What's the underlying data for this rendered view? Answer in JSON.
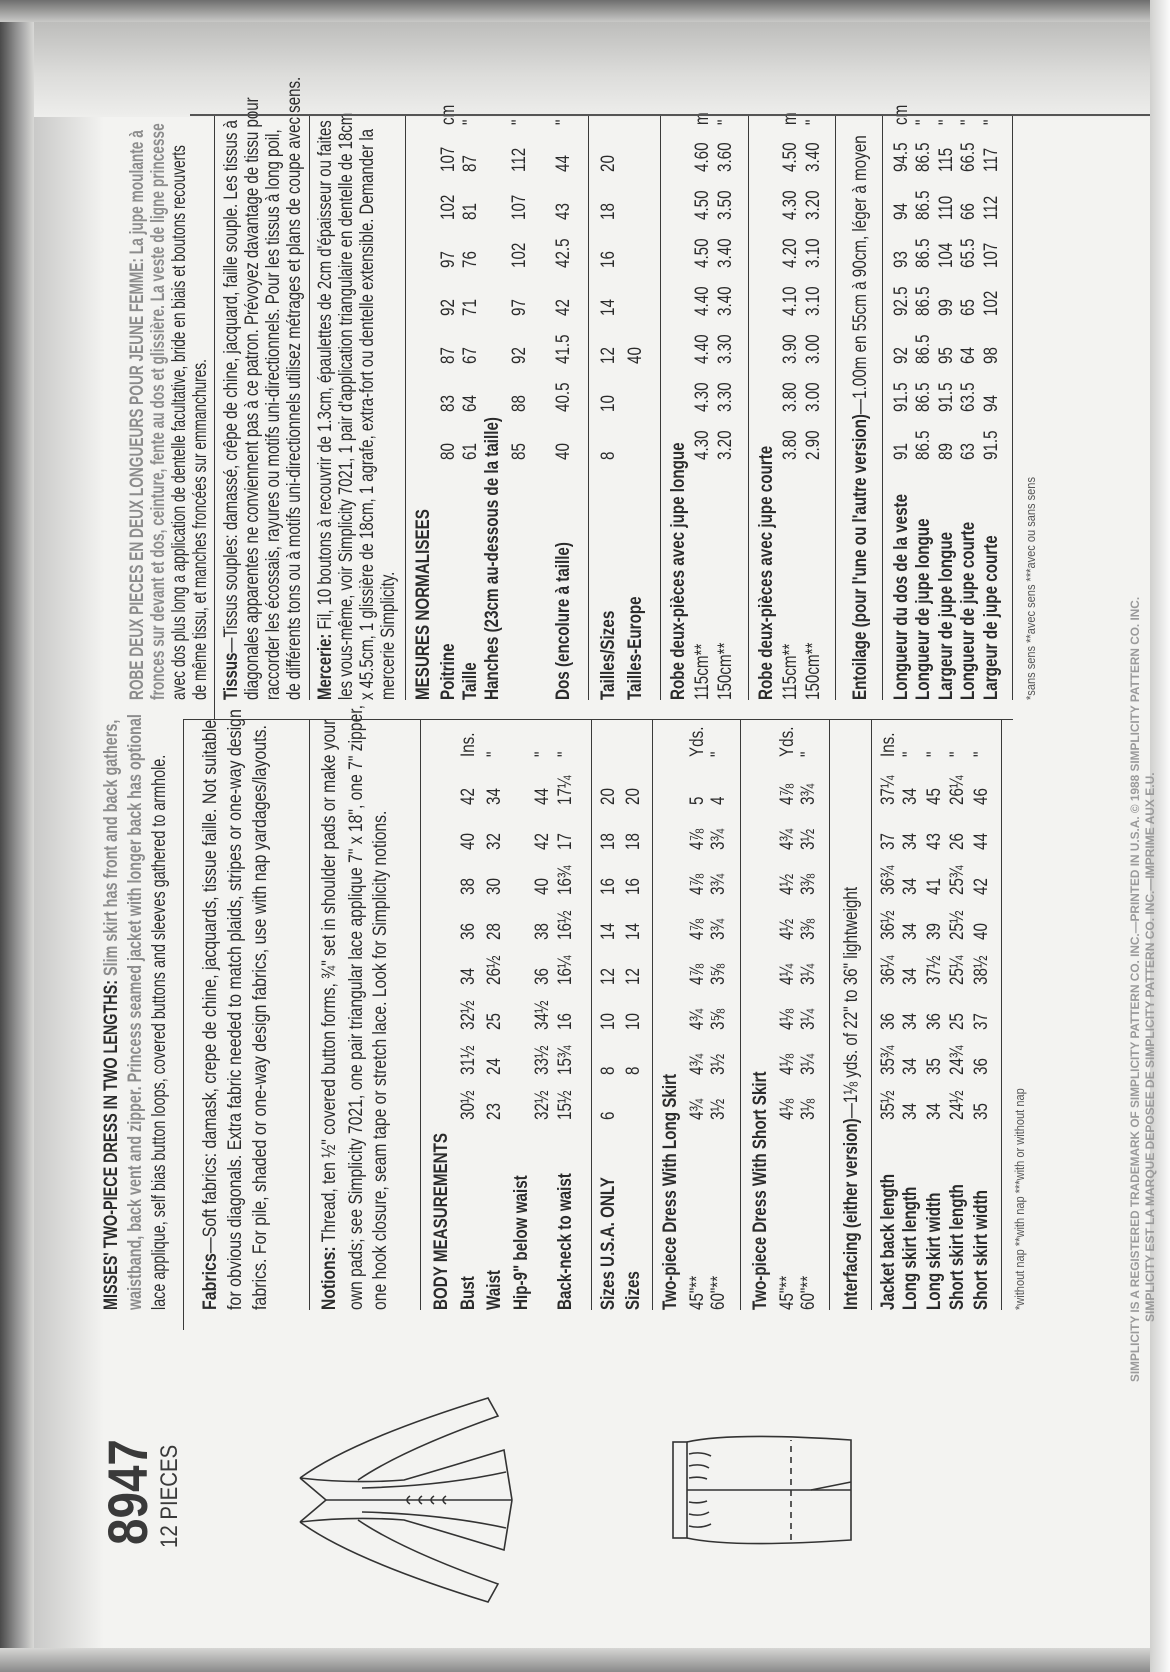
{
  "pattern": {
    "number": "8947",
    "pieces": "12 PIECES"
  },
  "english": {
    "header": {
      "lead": "MISSES' TWO-PIECE DRESS IN TWO LENGTHS:",
      "line1_rest": " Slim skirt has front and back gathers,",
      "line2": "waistband, back vent and zipper. Princess seamed jacket with longer back has optional",
      "line3": "lace applique, self bias button loops, covered buttons and sleeves gathered to armhole."
    },
    "fabrics": {
      "label": "Fabrics",
      "line1": "—Soft fabrics: damask, crepe de chine, jacquards, tissue faille. Not suitable",
      "line2": "for obvious diagonals. Extra fabric needed to match plaids, stripes or one-way design",
      "line3": "fabrics. For pile, shaded or one-way design fabrics, use with nap yardages/layouts."
    },
    "notions": {
      "label": "Notions:",
      "line1": " Thread, ten ½\" covered button forms, ¾\" set in shoulder pads or make your",
      "line2": "own pads; see Simplicity 7021, one pair triangular lace applique 7\" x 18\", one 7\" zipper,",
      "line3": "one hook closure, seam tape or stretch lace. Look for Simplicity notions."
    },
    "body": {
      "heading": "BODY MEASUREMENTS",
      "rows": [
        {
          "label": "Bust",
          "values": [
            "30½",
            "31½",
            "32½",
            "34",
            "36",
            "38",
            "40",
            "42"
          ],
          "unit": "Ins."
        },
        {
          "label": "Waist",
          "values": [
            "23",
            "24",
            "25",
            "26½",
            "28",
            "30",
            "32",
            "34"
          ],
          "unit": "\""
        },
        {
          "label": "Hip-9\" below waist",
          "values": [
            "32½",
            "33½",
            "34½",
            "36",
            "38",
            "40",
            "42",
            "44"
          ],
          "unit": "\""
        },
        {
          "label": "Back-neck to waist",
          "values": [
            "15½",
            "15¾",
            "16",
            "16¼",
            "16½",
            "16¾",
            "17",
            "17¼"
          ],
          "unit": "\""
        }
      ]
    },
    "sizes": [
      {
        "label": "Sizes U.S.A. ONLY",
        "values": [
          "6",
          "8",
          "10",
          "12",
          "14",
          "16",
          "18",
          "20"
        ]
      },
      {
        "label": "Sizes",
        "values": [
          "",
          "8",
          "10",
          "12",
          "14",
          "16",
          "18",
          "20"
        ]
      }
    ],
    "long": {
      "title": "Two-piece Dress With Long Skirt",
      "rows": [
        {
          "label": "45\"**",
          "values": [
            "4¾",
            "4¾",
            "4¾",
            "4⅞",
            "4⅞",
            "4⅞",
            "4⅞",
            "5"
          ],
          "unit": "Yds."
        },
        {
          "label": "60\"**",
          "values": [
            "3½",
            "3½",
            "3⅝",
            "3⅝",
            "3¾",
            "3¾",
            "3¾",
            "4"
          ],
          "unit": "\""
        }
      ]
    },
    "short": {
      "title": "Two-piece Dress With Short Skirt",
      "rows": [
        {
          "label": "45\"**",
          "values": [
            "4⅛",
            "4⅛",
            "4⅛",
            "4¼",
            "4½",
            "4½",
            "4¾",
            "4⅞"
          ],
          "unit": "Yds."
        },
        {
          "label": "60\"**",
          "values": [
            "3⅛",
            "3¼",
            "3¼",
            "3¼",
            "3⅜",
            "3⅜",
            "3½",
            "3¾"
          ],
          "unit": "\""
        }
      ]
    },
    "interfacing": {
      "label": "Interfacing (either version)",
      "text": "—1⅛ yds. of 22\" to 36\" lightweight",
      "rows": [
        {
          "label": "Jacket back length",
          "values": [
            "35½",
            "35¾",
            "36",
            "36¼",
            "36½",
            "36¾",
            "37",
            "37¼"
          ],
          "unit": "Ins."
        },
        {
          "label": "Long skirt length",
          "values": [
            "34",
            "34",
            "34",
            "34",
            "34",
            "34",
            "34",
            "34"
          ],
          "unit": "\""
        },
        {
          "label": "Long skirt width",
          "values": [
            "34",
            "35",
            "36",
            "37½",
            "39",
            "41",
            "43",
            "45"
          ],
          "unit": "\""
        },
        {
          "label": "Short skirt length",
          "values": [
            "24½",
            "24¾",
            "25",
            "25¼",
            "25½",
            "25¾",
            "26",
            "26¼"
          ],
          "unit": "\""
        },
        {
          "label": "Short skirt width",
          "values": [
            "35",
            "36",
            "37",
            "38½",
            "40",
            "42",
            "44",
            "46"
          ],
          "unit": "\""
        }
      ]
    },
    "footnote": "*without nap  **with nap  ***with or without nap"
  },
  "french": {
    "header": {
      "lead": "ROBE DEUX PIECES EN DEUX LONGUEURS POUR JEUNE FEMME:",
      "line1_rest": " La jupe moulante à",
      "line2": "fronces sur devant et dos, ceinture, fente au dos et glissière. La veste de ligne princesse",
      "line3": "avec dos plus long a application de dentelle facultative, bride en biais et boutons recouverts",
      "line4": "de même tissu, et manches froncées sur emmanchures."
    },
    "tissus": {
      "label": "Tissus",
      "line1": "—Tissus souples: damassé, crêpe de chine, jacquard, faille souple. Les tissus à",
      "line2": "diagonales apparentes ne conviennent pas à ce patron. Prévoyez davantage de tissu pour",
      "line3": "raccorder les écossais, rayures ou motifs uni-directionnels. Pour les tissus à long poil,",
      "line4": "de différents tons ou à motifs uni-directionnels utilisez métrages et plans de coupe avec sens."
    },
    "mercerie": {
      "label": "Mercerie:",
      "line1": " Fil, 10 boutons à recouvrir de 1.3cm, épaulettes de 2cm d'épaisseur ou faites",
      "line2": "les vous-même, voir Simplicity 7021, 1 pair d'application triangulaire en dentelle de 18cm",
      "line3": "x 45.5cm, 1 glissière de 18cm, 1 agrafe, extra-fort ou dentelle extensible. Demander la",
      "line4": "mercerie Simplicity."
    },
    "body": {
      "heading": "MESURES NORMALISEES",
      "rows": [
        {
          "label": "Poitrine",
          "values": [
            "80",
            "83",
            "87",
            "92",
            "97",
            "102",
            "107"
          ],
          "unit": "cm"
        },
        {
          "label": "Taille",
          "values": [
            "61",
            "64",
            "67",
            "71",
            "76",
            "81",
            "87"
          ],
          "unit": "\""
        },
        {
          "label": "Hanches (23cm au-dessous de la taille)",
          "values": [
            "85",
            "88",
            "92",
            "97",
            "102",
            "107",
            "112"
          ],
          "unit": "\""
        },
        {
          "label": "Dos (encolure à taille)",
          "values": [
            "40",
            "40.5",
            "41.5",
            "42",
            "42.5",
            "43",
            "44"
          ],
          "unit": "\""
        }
      ]
    },
    "sizes": [
      {
        "label": "Tailles/Sizes",
        "values": [
          "8",
          "10",
          "12",
          "14",
          "16",
          "18",
          "20"
        ]
      },
      {
        "label": "Tailles-Europe",
        "values": [
          "",
          "",
          "40",
          "",
          "",
          "",
          ""
        ]
      }
    ],
    "long": {
      "title": "Robe deux-pièces avec jupe longue",
      "rows": [
        {
          "label": "115cm**",
          "values": [
            "4.30",
            "4.30",
            "4.40",
            "4.40",
            "4.50",
            "4.50",
            "4.60"
          ],
          "unit": "m"
        },
        {
          "label": "150cm**",
          "values": [
            "3.20",
            "3.30",
            "3.30",
            "3.40",
            "3.40",
            "3.50",
            "3.60"
          ],
          "unit": "\""
        }
      ]
    },
    "short": {
      "title": "Robe deux-pièces avec jupe courte",
      "rows": [
        {
          "label": "115cm**",
          "values": [
            "3.80",
            "3.80",
            "3.90",
            "4.10",
            "4.20",
            "4.30",
            "4.50"
          ],
          "unit": "m"
        },
        {
          "label": "150cm**",
          "values": [
            "2.90",
            "3.00",
            "3.00",
            "3.10",
            "3.10",
            "3.20",
            "3.40"
          ],
          "unit": "\""
        }
      ]
    },
    "interfacing": {
      "label": "Entoilage (pour l'une ou l'autre version)",
      "text": "—1.00m en 55cm à 90cm, léger à moyen",
      "rows": [
        {
          "label": "Longueur du dos de la veste",
          "values": [
            "91",
            "91.5",
            "92",
            "92.5",
            "93",
            "94",
            "94.5"
          ],
          "unit": "cm"
        },
        {
          "label": "Longueur de jupe longue",
          "values": [
            "86.5",
            "86.5",
            "86.5",
            "86.5",
            "86.5",
            "86.5",
            "86.5"
          ],
          "unit": "\""
        },
        {
          "label": "Largeur de jupe longue",
          "values": [
            "89",
            "91.5",
            "95",
            "99",
            "104",
            "110",
            "115"
          ],
          "unit": "\""
        },
        {
          "label": "Longueur de jupe courte",
          "values": [
            "63",
            "63.5",
            "64",
            "65",
            "65.5",
            "66",
            "66.5"
          ],
          "unit": "\""
        },
        {
          "label": "Largeur de jupe courte",
          "values": [
            "91.5",
            "94",
            "98",
            "102",
            "107",
            "112",
            "117"
          ],
          "unit": "\""
        }
      ]
    },
    "footnote": "*sans sens  **avec sens  ***avec ou sans sens"
  },
  "trademark": {
    "line1": "SIMPLICITY IS A REGISTERED TRADEMARK OF SIMPLICITY PATTERN CO. INC.—PRINTED IN U.S.A. © 1988 SIMPLICITY PATTERN CO. INC.",
    "line2": "SIMPLICITY EST LA MARQUE DEPOSEE DE SIMPLICITY PATTERN CO. INC.—IMPRIME AUX E.U."
  },
  "colors": {
    "paper": "#f3f3f1",
    "ink": "#2b2b2b",
    "faded_ink": "#8c8c8c"
  }
}
